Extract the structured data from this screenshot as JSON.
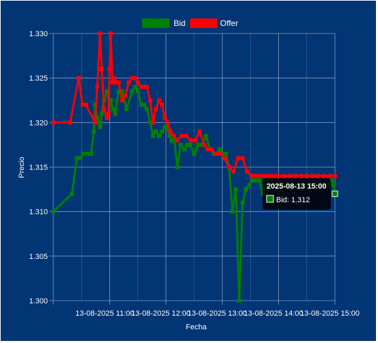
{
  "chart_data": {
    "type": "line",
    "title": "",
    "xlabel": "Fecha",
    "ylabel": "Precio",
    "ylim": [
      1.3,
      1.33
    ],
    "y_ticks": [
      "1.300",
      "1.305",
      "1.310",
      "1.315",
      "1.320",
      "1.325",
      "1.330"
    ],
    "x_ticks": [
      "13-08-2025 11:00",
      "13-08-2025 12:00",
      "13-08-2025 13:00",
      "13-08-2025 14:00",
      "13-08-2025 15:00"
    ],
    "x_tick_hours": [
      11,
      12,
      13,
      14,
      15
    ],
    "xlim_hours": [
      10.0,
      15.0
    ],
    "grid": true,
    "legend_position": "top",
    "series": [
      {
        "name": "Bid",
        "color": "#008000",
        "x": [
          10.0,
          10.33,
          10.42,
          10.48,
          10.53,
          10.62,
          10.67,
          10.72,
          10.74,
          10.78,
          10.83,
          10.86,
          10.9,
          10.95,
          11.0,
          11.02,
          11.06,
          11.1,
          11.16,
          11.22,
          11.3,
          11.4,
          11.45,
          11.5,
          11.56,
          11.61,
          11.66,
          11.72,
          11.77,
          11.82,
          11.88,
          11.93,
          11.98,
          12.02,
          12.06,
          12.1,
          12.15,
          12.2,
          12.26,
          12.33,
          12.38,
          12.43,
          12.5,
          12.57,
          12.64,
          12.71,
          12.78,
          12.85,
          12.9,
          12.95,
          13.0,
          13.06,
          13.12,
          13.18,
          13.24,
          13.3,
          13.36,
          13.42,
          13.48,
          13.54,
          13.6,
          13.66,
          13.72,
          13.78,
          13.82,
          13.86,
          13.9,
          13.94,
          13.98,
          14.02,
          14.06,
          14.1,
          14.16,
          14.24,
          14.32,
          14.4,
          14.48,
          14.56,
          14.64,
          14.72,
          14.8,
          14.88,
          14.94,
          14.98,
          15.0
        ],
        "values": [
          1.31,
          1.312,
          1.316,
          1.316,
          1.3165,
          1.3165,
          1.3165,
          1.319,
          1.322,
          1.3205,
          1.3195,
          1.321,
          1.3225,
          1.3235,
          1.322,
          1.3225,
          1.3215,
          1.321,
          1.3235,
          1.3235,
          1.3215,
          1.3235,
          1.324,
          1.3235,
          1.322,
          1.322,
          1.3215,
          1.32,
          1.3185,
          1.319,
          1.3185,
          1.319,
          1.3195,
          1.3195,
          1.3185,
          1.318,
          1.318,
          1.315,
          1.3175,
          1.317,
          1.3175,
          1.3175,
          1.3165,
          1.3175,
          1.3175,
          1.3185,
          1.317,
          1.3165,
          1.3165,
          1.317,
          1.3165,
          1.3165,
          1.315,
          1.31,
          1.3125,
          1.3,
          1.311,
          1.3125,
          1.313,
          1.3135,
          1.3135,
          1.3135,
          1.312,
          1.313,
          1.3135,
          1.3135,
          1.313,
          1.313,
          1.313,
          1.313,
          1.313,
          1.313,
          1.313,
          1.313,
          1.313,
          1.313,
          1.313,
          1.313,
          1.313,
          1.313,
          1.313,
          1.313,
          1.3135,
          1.313,
          1.312
        ]
      },
      {
        "name": "Offer",
        "color": "#ff0000",
        "x": [
          10.0,
          10.3,
          10.45,
          10.52,
          10.58,
          10.74,
          10.78,
          10.83,
          10.86,
          10.9,
          10.95,
          10.98,
          11.0,
          11.02,
          11.05,
          11.08,
          11.12,
          11.16,
          11.22,
          11.28,
          11.34,
          11.4,
          11.45,
          11.5,
          11.56,
          11.61,
          11.66,
          11.72,
          11.77,
          11.82,
          11.88,
          11.93,
          11.98,
          12.03,
          12.08,
          12.14,
          12.2,
          12.28,
          12.36,
          12.44,
          12.52,
          12.6,
          12.68,
          12.74,
          12.8,
          12.88,
          12.96,
          13.04,
          13.12,
          13.2,
          13.28,
          13.36,
          13.44,
          13.52,
          13.6,
          13.68,
          13.76,
          13.84,
          13.92,
          14.0,
          14.1,
          14.2,
          14.3,
          14.4,
          14.5,
          14.6,
          14.7,
          14.8,
          14.9,
          15.0
        ],
        "values": [
          1.32,
          1.32,
          1.325,
          1.322,
          1.322,
          1.32,
          1.324,
          1.33,
          1.326,
          1.3215,
          1.3205,
          1.321,
          1.326,
          1.33,
          1.3245,
          1.325,
          1.3245,
          1.3245,
          1.3225,
          1.323,
          1.3245,
          1.325,
          1.325,
          1.3245,
          1.324,
          1.324,
          1.324,
          1.3225,
          1.32,
          1.3215,
          1.3225,
          1.322,
          1.3205,
          1.32,
          1.319,
          1.3185,
          1.318,
          1.3185,
          1.3185,
          1.318,
          1.318,
          1.319,
          1.3175,
          1.317,
          1.317,
          1.3165,
          1.3165,
          1.316,
          1.315,
          1.3145,
          1.316,
          1.316,
          1.3145,
          1.314,
          1.314,
          1.314,
          1.314,
          1.314,
          1.314,
          1.314,
          1.314,
          1.314,
          1.314,
          1.314,
          1.314,
          1.314,
          1.314,
          1.314,
          1.314,
          1.314
        ]
      }
    ],
    "tooltip": {
      "title": "2025-08-13 15:00",
      "label": "Bid: 1.312",
      "series": "Bid",
      "x_hour": 15.0,
      "value": 1.312
    }
  },
  "colors": {
    "background": "#013574",
    "grid": "#8a9fbf",
    "bid": "#008000",
    "offer": "#ff0000"
  }
}
